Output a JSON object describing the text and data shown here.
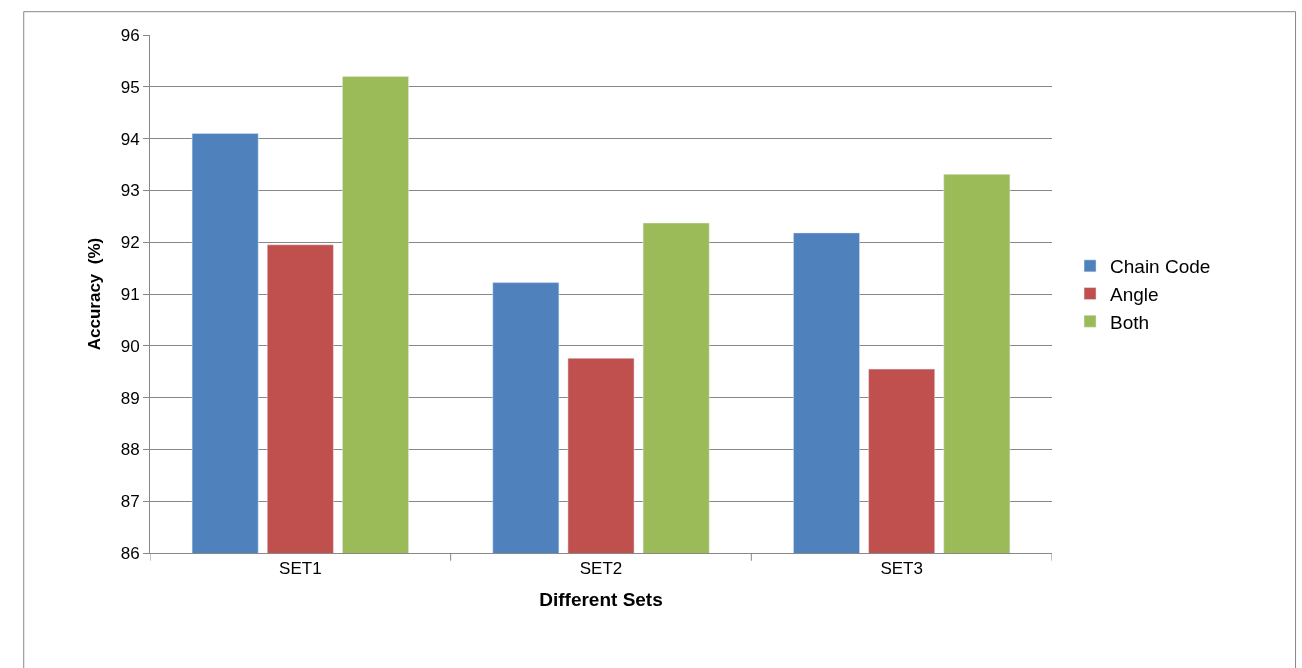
{
  "chart_data": {
    "type": "bar",
    "xlabel": "Different Sets",
    "ylabel": "Accuracy  (%)",
    "categories": [
      "SET1",
      "SET2",
      "SET3"
    ],
    "series": [
      {
        "name": "Chain Code",
        "color": "#4f81bd",
        "values": [
          94.1,
          91.22,
          92.18
        ]
      },
      {
        "name": "Angle",
        "color": "#c0504d",
        "values": [
          91.95,
          89.76,
          89.55
        ]
      },
      {
        "name": "Both",
        "color": "#9bbb59",
        "values": [
          95.2,
          92.37,
          93.31
        ]
      }
    ],
    "ylim": [
      86,
      96
    ],
    "yticks": [
      86,
      87,
      88,
      89,
      90,
      91,
      92,
      93,
      94,
      95,
      96
    ],
    "grid": "y",
    "legend": "right"
  }
}
